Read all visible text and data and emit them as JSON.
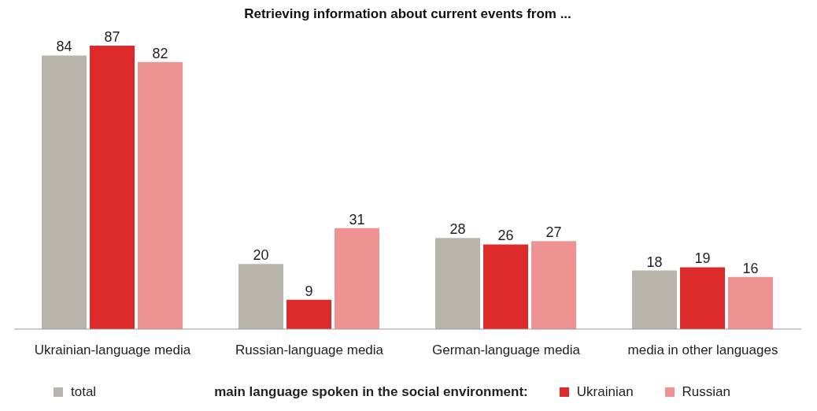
{
  "chart_data": {
    "type": "bar",
    "title": "Retrieving information about current events from ...",
    "categories": [
      "Ukrainian-language media",
      "Russian-language media",
      "German-language media",
      "media in other languages"
    ],
    "series": [
      {
        "name": "total",
        "color": "#b8b4ac",
        "values": [
          84,
          20,
          28,
          18
        ]
      },
      {
        "name": "Ukrainian",
        "color": "#dc2a2a",
        "values": [
          87,
          9,
          26,
          19
        ]
      },
      {
        "name": "Russian",
        "color": "#ee9292",
        "values": [
          82,
          31,
          27,
          16
        ]
      }
    ],
    "legend_title": "main language spoken in the social environment:",
    "legend": "bottom",
    "data_labels": true,
    "grid": false
  }
}
